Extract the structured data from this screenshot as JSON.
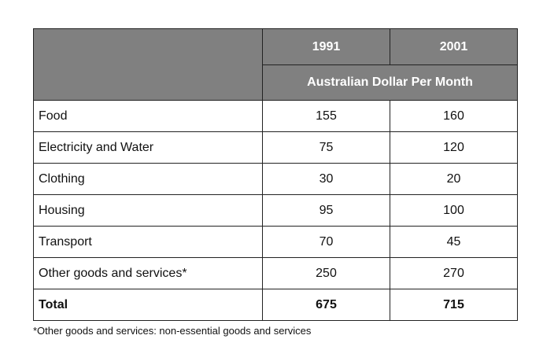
{
  "chart_data": {
    "type": "table",
    "columns": [
      "1991",
      "2001"
    ],
    "unit_header": "Australian Dollar Per Month",
    "rows": [
      {
        "category": "Food",
        "values": [
          "155",
          "160"
        ]
      },
      {
        "category": "Electricity and Water",
        "values": [
          "75",
          "120"
        ]
      },
      {
        "category": "Clothing",
        "values": [
          "30",
          "20"
        ]
      },
      {
        "category": "Housing",
        "values": [
          "95",
          "100"
        ]
      },
      {
        "category": "Transport",
        "values": [
          "70",
          "45"
        ]
      },
      {
        "category": "Other goods and services*",
        "values": [
          "250",
          "270"
        ]
      }
    ],
    "total": {
      "category": "Total",
      "values": [
        "675",
        "715"
      ]
    },
    "footnote": "*Other goods and services: non-essential goods and services"
  },
  "colors": {
    "header_background": "#808080",
    "header_text": "#ffffff",
    "border": "#222222"
  }
}
